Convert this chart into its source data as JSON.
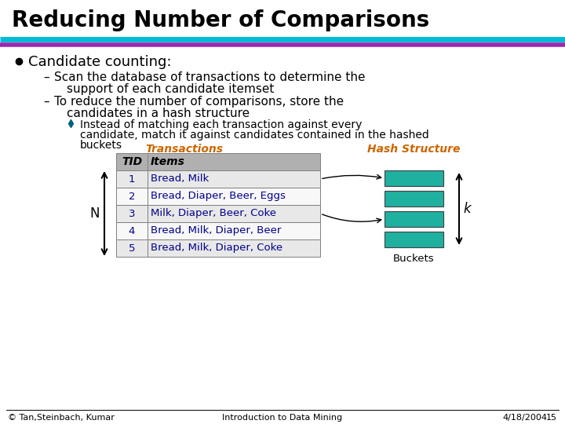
{
  "title": "Reducing Number of Comparisons",
  "bg_color": "#ffffff",
  "title_color": "#000000",
  "title_fontsize": 20,
  "line1_color": "#00bcd4",
  "line2_color": "#9c27b0",
  "bullet_text": "Candidate counting:",
  "dash1_line1": "Scan the database of transactions to determine the",
  "dash1_line2": "support of each candidate itemset",
  "dash2_line1": "To reduce the number of comparisons, store the",
  "dash2_line2": "candidates in a hash structure",
  "diamond_line1": "Instead of matching each transaction against every",
  "diamond_line2": "candidate, match it against candidates contained in the hashed",
  "diamond_line3": "buckets",
  "transactions_label": "Transactions",
  "transactions_color": "#cc6600",
  "hash_label": "Hash Structure",
  "hash_color": "#cc6600",
  "table_header": [
    "TID",
    "Items"
  ],
  "table_rows": [
    [
      "1",
      "Bread, Milk"
    ],
    [
      "2",
      "Bread, Diaper, Beer, Eggs"
    ],
    [
      "3",
      "Milk, Diaper, Beer, Coke"
    ],
    [
      "4",
      "Bread, Milk, Diaper, Beer"
    ],
    [
      "5",
      "Bread, Milk, Diaper, Coke"
    ]
  ],
  "table_text_color": "#00008b",
  "table_header_bg": "#b0b0b0",
  "bucket_color": "#20b0a0",
  "buckets_label": "Buckets",
  "k_label": "k",
  "N_label": "N",
  "footer_left": "© Tan,Steinbach, Kumar",
  "footer_center": "Introduction to Data Mining",
  "footer_right": "4/18/2004",
  "footer_page": "15",
  "footer_color": "#000000",
  "footer_fontsize": 8,
  "arrow_color": "#000000",
  "diamond_color": "#006080"
}
